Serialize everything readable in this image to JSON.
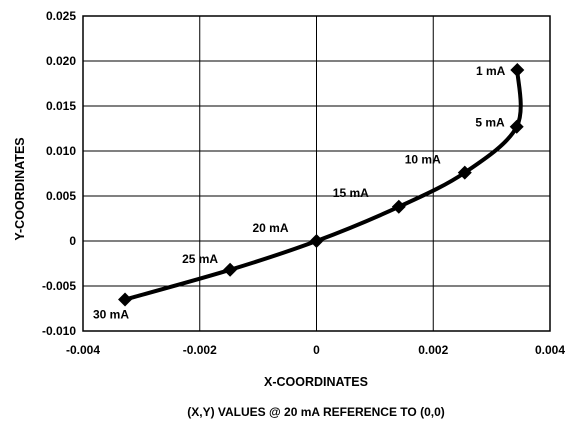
{
  "chart_data": {
    "type": "line",
    "title": "",
    "caption": "(X,Y) VALUES @ 20 mA REFERENCE TO (0,0)",
    "xlabel": "X-COORDINATES",
    "ylabel": "Y-COORDINATES",
    "xlim": [
      -0.004,
      0.004
    ],
    "ylim": [
      -0.01,
      0.025
    ],
    "xticks": [
      "-0.004",
      "-0.002",
      "0",
      "0.002",
      "0.004"
    ],
    "yticks": [
      "0.025",
      "0.020",
      "0.015",
      "0.010",
      "0.005",
      "0",
      "-0.005",
      "-0.010"
    ],
    "grid": true,
    "series": [
      {
        "points": [
          {
            "label": "1 mA",
            "x": 0.00344,
            "y": 0.019
          },
          {
            "label": "5 mA",
            "x": 0.00343,
            "y": 0.0127
          },
          {
            "label": "10 mA",
            "x": 0.00254,
            "y": 0.0076
          },
          {
            "label": "15 mA",
            "x": 0.00141,
            "y": 0.0038
          },
          {
            "label": "20 mA",
            "x": 0.0,
            "y": 0.0
          },
          {
            "label": "25 mA",
            "x": -0.00148,
            "y": -0.0032
          },
          {
            "label": "30 mA",
            "x": -0.00328,
            "y": -0.0065
          }
        ]
      }
    ]
  }
}
